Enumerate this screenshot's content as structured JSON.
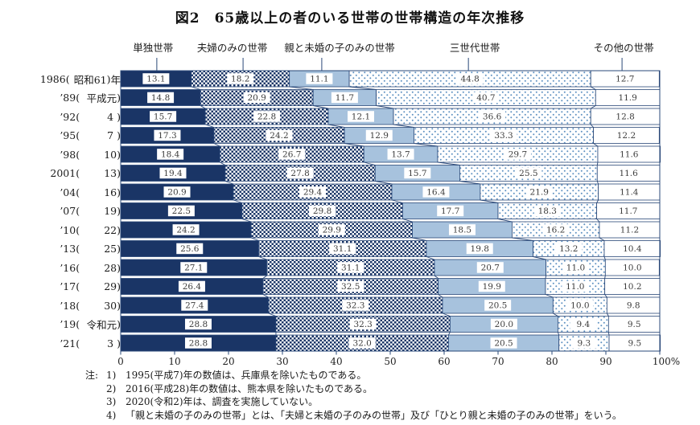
{
  "page": {
    "title": "図2　65歳以上の者のいる世帯の世帯構造の年次推移"
  },
  "chart_data": {
    "type": "stacked-bar-horizontal",
    "unit": "%",
    "title": "図2　65歳以上の者のいる世帯の世帯構造の年次推移",
    "series": [
      {
        "name": "単独世帯",
        "style": "solid-navy",
        "label_center_pct": 6.0,
        "tick_pct": 6.7
      },
      {
        "name": "夫婦のみの世帯",
        "style": "checker",
        "label_center_pct": 20.7,
        "tick_pct": 22.7
      },
      {
        "name": "親と未婚の子のみの世帯",
        "style": "solid-lightblue",
        "label_center_pct": 40.6,
        "tick_pct": 37.3
      },
      {
        "name": "三世代世帯",
        "style": "dots",
        "label_center_pct": 65.7,
        "tick_pct": 64.5
      },
      {
        "name": "その他の世帯",
        "style": "plain",
        "label_center_pct": 93.3,
        "tick_pct": 93.0
      }
    ],
    "rows": [
      {
        "year_pre": "1986",
        "year_era": "昭和61",
        "year_suffix": "年",
        "values": [
          13.1,
          18.2,
          11.1,
          44.8,
          12.7
        ]
      },
      {
        "year_pre": "’89",
        "year_era": "平成元",
        "year_suffix": "",
        "values": [
          14.8,
          20.9,
          11.7,
          40.7,
          11.9
        ]
      },
      {
        "year_pre": "’92",
        "year_era": "4 ",
        "year_suffix": "",
        "values": [
          15.7,
          22.8,
          12.1,
          36.6,
          12.8
        ]
      },
      {
        "year_pre": "’95",
        "year_era": "7 ",
        "year_suffix": "",
        "values": [
          17.3,
          24.2,
          12.9,
          33.3,
          12.2
        ]
      },
      {
        "year_pre": "’98",
        "year_era": "10",
        "year_suffix": "",
        "values": [
          18.4,
          26.7,
          13.7,
          29.7,
          11.6
        ]
      },
      {
        "year_pre": "2001",
        "year_era": "13",
        "year_suffix": "",
        "values": [
          19.4,
          27.8,
          15.7,
          25.5,
          11.6
        ]
      },
      {
        "year_pre": "’04",
        "year_era": "16",
        "year_suffix": "",
        "values": [
          20.9,
          29.4,
          16.4,
          21.9,
          11.4
        ]
      },
      {
        "year_pre": "’07",
        "year_era": "19",
        "year_suffix": "",
        "values": [
          22.5,
          29.8,
          17.7,
          18.3,
          11.7
        ]
      },
      {
        "year_pre": "’10",
        "year_era": "22",
        "year_suffix": "",
        "values": [
          24.2,
          29.9,
          18.5,
          16.2,
          11.2
        ]
      },
      {
        "year_pre": "’13",
        "year_era": "25",
        "year_suffix": "",
        "values": [
          25.6,
          31.1,
          19.8,
          13.2,
          10.4
        ]
      },
      {
        "year_pre": "’16",
        "year_era": "28",
        "year_suffix": "",
        "values": [
          27.1,
          31.1,
          20.7,
          11.0,
          10.0
        ]
      },
      {
        "year_pre": "’17",
        "year_era": "29",
        "year_suffix": "",
        "values": [
          26.4,
          32.5,
          19.9,
          11.0,
          10.2
        ]
      },
      {
        "year_pre": "’18",
        "year_era": "30",
        "year_suffix": "",
        "values": [
          27.4,
          32.3,
          20.5,
          10.0,
          9.8
        ]
      },
      {
        "year_pre": "’19",
        "year_era": "令和元",
        "year_suffix": "",
        "values": [
          28.8,
          32.3,
          20.0,
          9.4,
          9.5
        ]
      },
      {
        "year_pre": "’21",
        "year_era": "3 ",
        "year_suffix": "",
        "values": [
          28.8,
          32.0,
          20.5,
          9.3,
          9.5
        ]
      }
    ],
    "x_axis": {
      "min": 0,
      "max": 100,
      "tick_interval": 10,
      "tick_labels": [
        "0",
        "10",
        "20",
        "30",
        "40",
        "50",
        "60",
        "70",
        "80",
        "90",
        "100%"
      ]
    },
    "legend_position": "top",
    "grid": false,
    "colors": {
      "navy": "#1a3566",
      "light_blue": "#a7c2dd",
      "dot_blue": "#5b8fc0",
      "border": "#2a4878",
      "value_text": "#3c3c3c",
      "axis_text": "#222222",
      "white": "#ffffff"
    }
  },
  "notes": {
    "prefix": "注:",
    "items": [
      {
        "num": "1)",
        "text": "1995(平成7)年の数値は、兵庫県を除いたものである。"
      },
      {
        "num": "2)",
        "text": "2016(平成28)年の数値は、熊本県を除いたものである。"
      },
      {
        "num": "3)",
        "text": "2020(令和2)年は、調査を実施していない。"
      },
      {
        "num": "4)",
        "text": "「親と未婚の子のみの世帯」とは、「夫婦と未婚の子のみの世帯」及び「ひとり親と未婚の子のみの世帯」をいう。"
      }
    ]
  }
}
